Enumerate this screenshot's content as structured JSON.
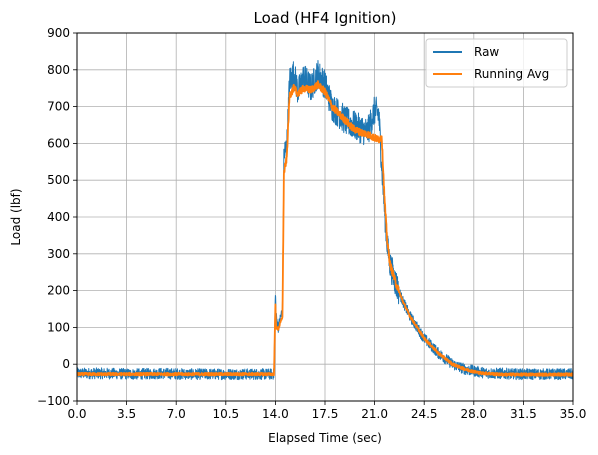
{
  "chart_data": {
    "type": "line",
    "title": "Load (HF4 Ignition)",
    "xlabel": "Elapsed Time (sec)",
    "ylabel": "Load (lbf)",
    "xlim": [
      0,
      35
    ],
    "ylim": [
      -100,
      900
    ],
    "xticks": [
      "0.0",
      "3.5",
      "7.0",
      "10.5",
      "14.0",
      "17.5",
      "21.0",
      "24.5",
      "28.0",
      "31.5",
      "35.0"
    ],
    "yticks": [
      "−100",
      "0",
      "100",
      "200",
      "300",
      "400",
      "500",
      "600",
      "700",
      "800",
      "900"
    ],
    "grid": true,
    "legend_position": "top-right",
    "series": [
      {
        "name": "Raw",
        "color": "#1f77b4",
        "noise": 25,
        "x": [
          0,
          2,
          4,
          6,
          8,
          10,
          12,
          13.9,
          14.0,
          14.05,
          14.2,
          14.5,
          14.6,
          14.8,
          15.0,
          15.3,
          15.6,
          16.0,
          16.5,
          17.0,
          17.5,
          18.0,
          18.5,
          19.0,
          19.5,
          20.0,
          20.5,
          21.0,
          21.3,
          21.5,
          21.7,
          21.9,
          22.1,
          22.5,
          23.0,
          23.5,
          24.0,
          24.5,
          25.0,
          25.5,
          26.0,
          26.5,
          27.0,
          27.5,
          28.0,
          28.5,
          29.0,
          29.5,
          30.0,
          31.0,
          32.0,
          33.0,
          34.0,
          35.0
        ],
        "y": [
          -25,
          -25,
          -27,
          -25,
          -27,
          -27,
          -27,
          -27,
          200,
          130,
          100,
          150,
          570,
          590,
          770,
          790,
          740,
          780,
          750,
          790,
          760,
          700,
          680,
          660,
          650,
          640,
          630,
          690,
          680,
          540,
          420,
          320,
          270,
          220,
          170,
          130,
          100,
          70,
          50,
          30,
          15,
          0,
          -8,
          -15,
          -18,
          -22,
          -24,
          -25,
          -25,
          -27,
          -27,
          -27,
          -27,
          -27
        ]
      },
      {
        "name": "Running Avg",
        "color": "#ff7f0e",
        "noise": 6,
        "x": [
          0,
          2,
          4,
          6,
          8,
          10,
          12,
          13.9,
          14.0,
          14.05,
          14.2,
          14.5,
          14.6,
          14.8,
          15.0,
          15.3,
          15.6,
          16.0,
          16.5,
          17.0,
          17.5,
          18.0,
          18.5,
          19.0,
          19.5,
          20.0,
          20.5,
          21.0,
          21.3,
          21.5,
          21.7,
          21.9,
          22.1,
          22.5,
          23.0,
          23.5,
          24.0,
          24.5,
          25.0,
          25.5,
          26.0,
          26.5,
          27.0,
          27.5,
          28.0,
          28.5,
          29.0,
          29.5,
          30.0,
          31.0,
          32.0,
          33.0,
          34.0,
          35.0
        ],
        "y": [
          -27,
          -27,
          -27,
          -27,
          -27,
          -27,
          -27,
          -27,
          160,
          100,
          95,
          130,
          520,
          560,
          730,
          750,
          735,
          750,
          745,
          760,
          740,
          700,
          680,
          660,
          640,
          630,
          625,
          615,
          610,
          620,
          450,
          330,
          270,
          220,
          170,
          130,
          100,
          70,
          50,
          30,
          15,
          0,
          -8,
          -15,
          -20,
          -24,
          -25,
          -27,
          -28,
          -28,
          -28,
          -28,
          -28,
          -28
        ]
      }
    ]
  }
}
